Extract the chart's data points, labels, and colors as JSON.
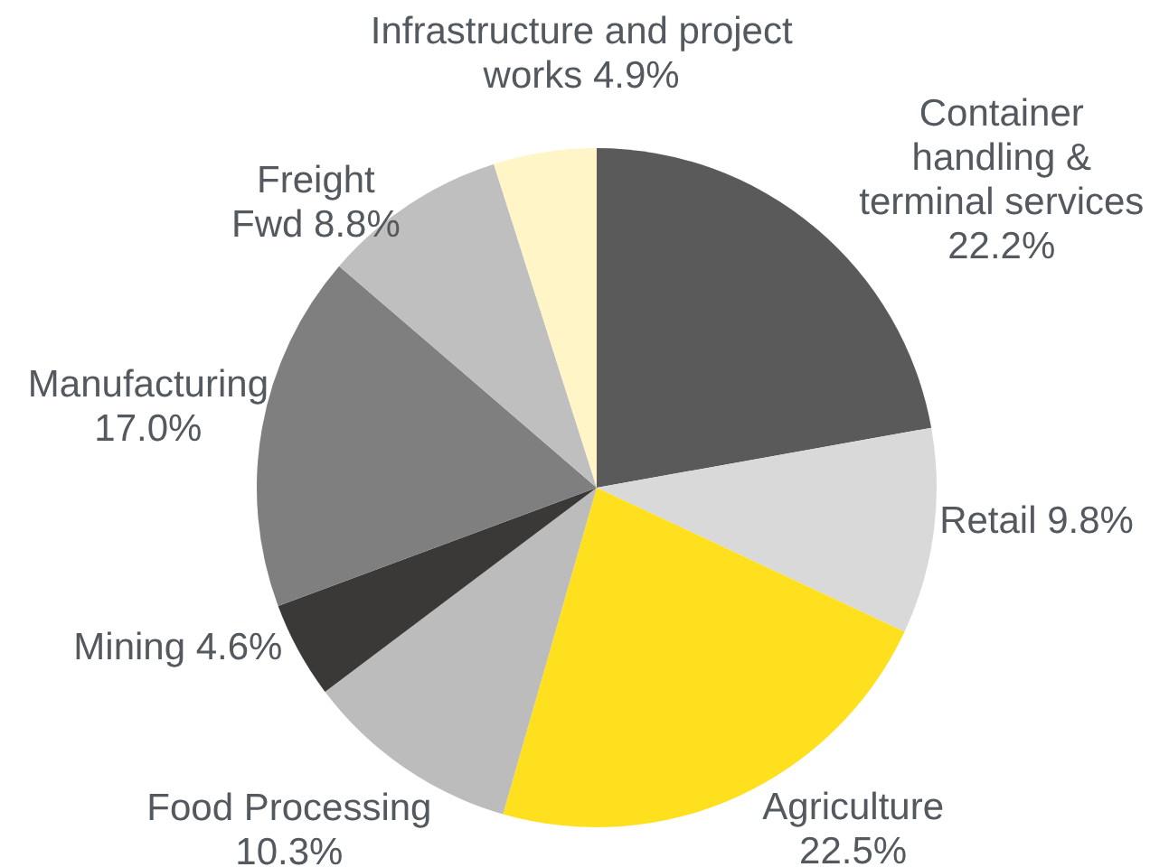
{
  "chart_data": {
    "type": "pie",
    "categories": [
      "Container handling & terminal services",
      "Retail",
      "Agriculture",
      "Food Processing",
      "Mining",
      "Manufacturing",
      "Freight Fwd",
      "Infrastructure and project works"
    ],
    "values": [
      22.2,
      9.8,
      22.5,
      10.3,
      4.6,
      17.0,
      8.8,
      4.9
    ],
    "value_labels": [
      "22.2%",
      "9.8%",
      "22.5%",
      "10.3%",
      "4.6%",
      "17.0%",
      "8.8%",
      "4.9%"
    ],
    "colors": [
      "#5a5a5a",
      "#d9d9d9",
      "#ffe01f",
      "#bcbcbc",
      "#3b3937",
      "#7f7f7f",
      "#bfbfbf",
      "#fff5c7"
    ]
  }
}
